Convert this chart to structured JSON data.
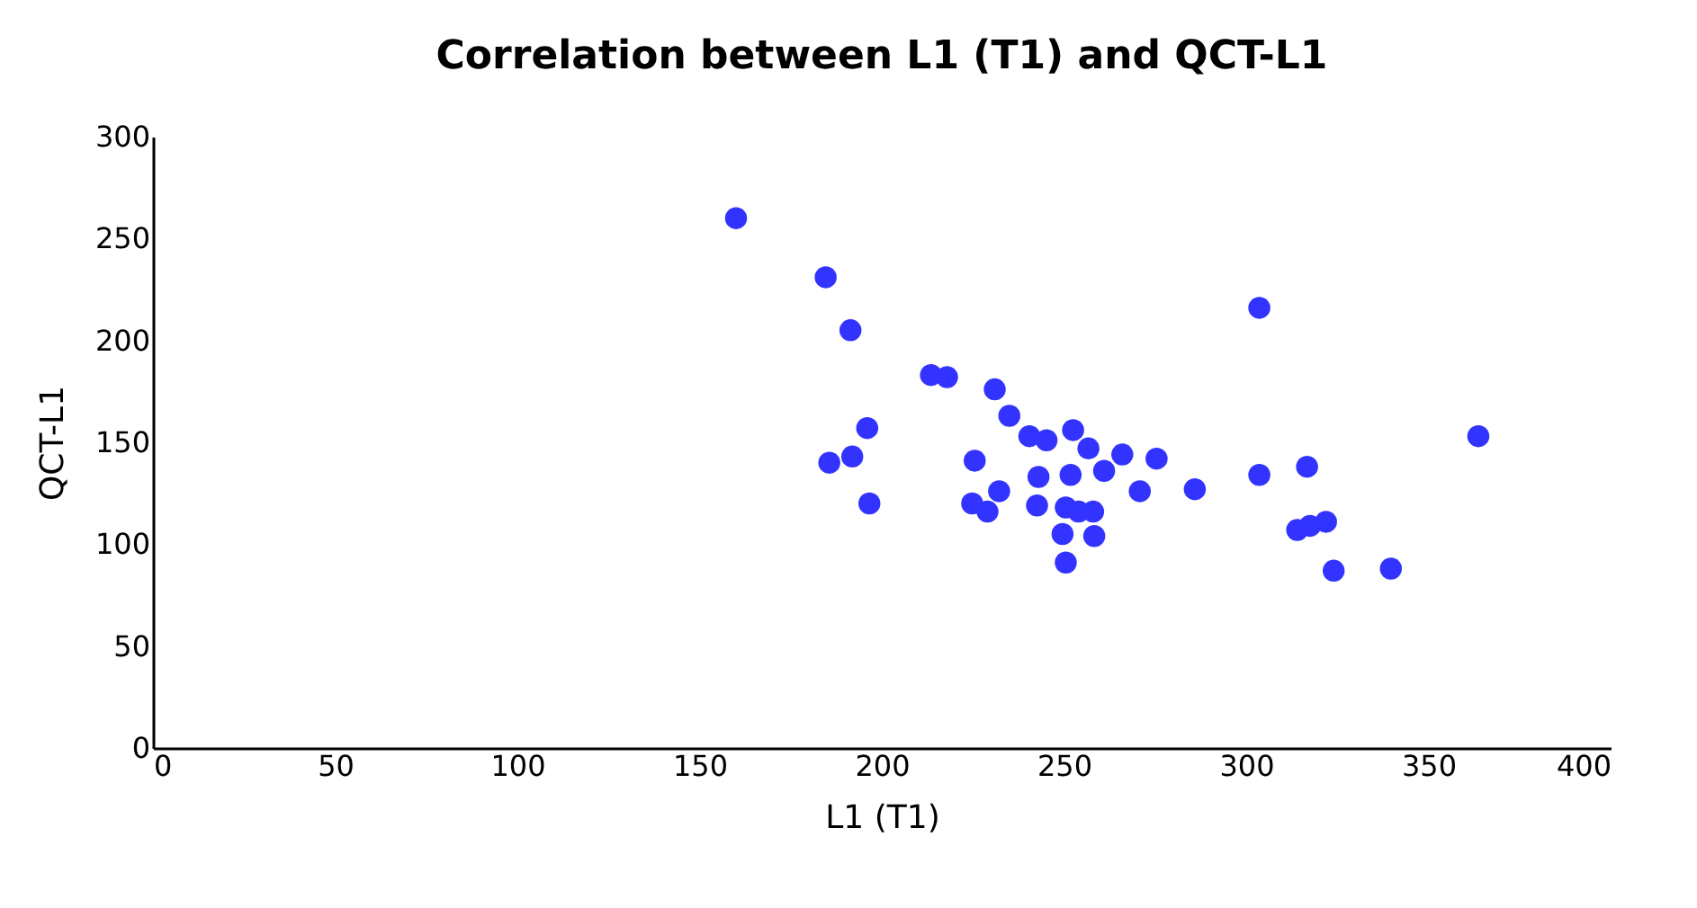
{
  "chart_data": {
    "type": "scatter",
    "title": "Correlation between L1 (T1) and QCT-L1",
    "xlabel": "L1 (T1)",
    "ylabel": "QCT-L1",
    "xlim": [
      0,
      400
    ],
    "xticks": [
      0,
      50,
      100,
      150,
      200,
      250,
      300,
      350,
      400
    ],
    "ylim": [
      0,
      300
    ],
    "yticks": [
      0,
      50,
      100,
      150,
      200,
      250,
      300
    ],
    "grid": false,
    "legend": false,
    "marker": "circle",
    "series": [
      {
        "color": "#3333ff",
        "x": [
          160,
          184.6,
          191.4,
          196,
          185.6,
          191.9,
          196.6,
          213.5,
          217.9,
          231,
          235,
          240.5,
          245.2,
          252.5,
          256.7,
          261,
          266,
          275.4,
          285.9,
          270.8,
          225.5,
          232.2,
          224.8,
          229,
          243,
          251.8,
          242.6,
          250.5,
          254,
          258,
          249.6,
          258.3,
          250.5,
          303.6,
          303.6,
          316.7,
          314,
          317.5,
          321.9,
          324,
          339.7,
          363.7
        ],
        "values": [
          260,
          231,
          205,
          157,
          140,
          143,
          120,
          183,
          182,
          176,
          163,
          153,
          151,
          156,
          147,
          136,
          144,
          142,
          127,
          126,
          141,
          126,
          120,
          116,
          133,
          134,
          119,
          118,
          116,
          116,
          105,
          104,
          91,
          216,
          134,
          138,
          107,
          109,
          111,
          87,
          88,
          153
        ]
      }
    ]
  }
}
